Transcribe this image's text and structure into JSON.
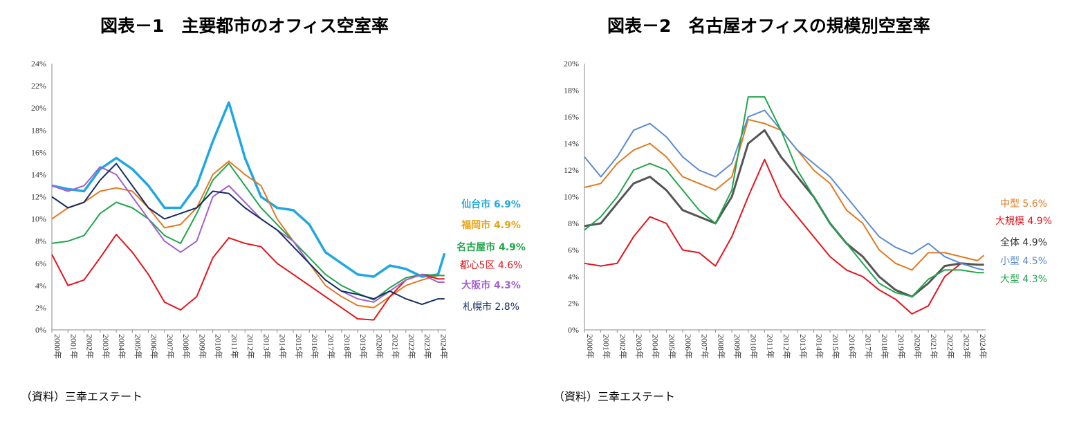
{
  "chart_data": [
    {
      "type": "line",
      "title": "図表－1　主要都市のオフィス空室率",
      "source": "（資料）三幸エステート",
      "ylim": [
        0,
        24
      ],
      "ytick_step": 2,
      "xlim": [
        2000,
        2024.5
      ],
      "x_ticks": [
        "2000年",
        "2001年",
        "2002年",
        "2003年",
        "2004年",
        "2005年",
        "2006年",
        "2007年",
        "2008年",
        "2009年",
        "2010年",
        "2011年",
        "2012年",
        "2013年",
        "2014年",
        "2015年",
        "2016年",
        "2017年",
        "2018年",
        "2019年",
        "2020年",
        "2021年",
        "2022年",
        "2023年",
        "2024年"
      ],
      "x": [
        2000,
        2001,
        2002,
        2003,
        2004,
        2005,
        2006,
        2007,
        2008,
        2009,
        2010,
        2011,
        2012,
        2013,
        2014,
        2015,
        2016,
        2017,
        2018,
        2019,
        2020,
        2021,
        2022,
        2023,
        2024,
        2024.4
      ],
      "series": [
        {
          "name": "仙台市",
          "label": "仙台市 6.9%",
          "color": "#1fa7e1",
          "width": 3.5,
          "values": [
            13,
            12.7,
            12.5,
            14.5,
            15.5,
            14.5,
            13,
            11,
            11,
            13,
            17,
            20.5,
            15.5,
            12,
            11,
            10.8,
            9.5,
            7,
            6,
            5,
            4.8,
            5.8,
            5.5,
            4.8,
            5,
            6.9
          ]
        },
        {
          "name": "福岡市",
          "label": "福岡市 4.9%",
          "color": "#e07a22",
          "labelColor": "#e8a317",
          "width": 2,
          "values": [
            10,
            11,
            11.5,
            12.5,
            12.8,
            12.5,
            11,
            9.2,
            9.5,
            11,
            14,
            15.2,
            14,
            13,
            10,
            8,
            6,
            4,
            3,
            2.2,
            2,
            3,
            4,
            4.5,
            4.9,
            4.9
          ]
        },
        {
          "name": "名古屋市",
          "label": "名古屋市 4.9%",
          "color": "#1fa64a",
          "width": 2,
          "values": [
            7.8,
            8,
            8.5,
            10.5,
            11.5,
            11,
            10,
            8.5,
            7.8,
            10.5,
            13.5,
            15,
            13,
            11,
            9.5,
            8,
            6.5,
            5,
            4,
            3.3,
            2.7,
            3.8,
            4.7,
            5,
            4.9,
            4.9
          ]
        },
        {
          "name": "都心5区",
          "label": "都心5区 4.6%",
          "color": "#e4141b",
          "width": 2,
          "values": [
            6.8,
            4,
            4.5,
            6.5,
            8.6,
            7,
            5,
            2.5,
            1.8,
            3,
            6.5,
            8.3,
            7.8,
            7.5,
            6,
            5,
            4,
            3,
            2,
            1,
            0.9,
            3,
            4.5,
            5,
            4.6,
            4.6
          ]
        },
        {
          "name": "大阪市",
          "label": "大阪市 4.3%",
          "color": "#a35fcf",
          "width": 2,
          "values": [
            13,
            12.5,
            13,
            14.7,
            14,
            12,
            10,
            8,
            7,
            8,
            12,
            13,
            11.5,
            10,
            9,
            8,
            6,
            4.5,
            3.5,
            2.8,
            2.5,
            3.5,
            4.5,
            5,
            4.3,
            4.3
          ]
        },
        {
          "name": "札幌市",
          "label": "札幌市 2.8%",
          "color": "#152d63",
          "width": 2,
          "values": [
            12,
            11,
            11.5,
            13.5,
            15,
            13,
            11,
            10,
            10.5,
            11,
            12.5,
            12.3,
            11,
            10,
            9,
            7.5,
            6,
            4.5,
            3.5,
            3.2,
            2.8,
            3.5,
            2.8,
            2.3,
            2.8,
            2.8
          ]
        }
      ]
    },
    {
      "type": "line",
      "title": "図表－2　名古屋オフィスの規模別空室率",
      "source": "（資料）三幸エステート",
      "ylim": [
        0,
        20
      ],
      "ytick_step": 2,
      "xlim": [
        2000,
        2024.5
      ],
      "x_ticks": [
        "2000年",
        "2001年",
        "2002年",
        "2003年",
        "2004年",
        "2005年",
        "2006年",
        "2007年",
        "2008年",
        "2009年",
        "2010年",
        "2011年",
        "2012年",
        "2013年",
        "2014年",
        "2015年",
        "2016年",
        "2017年",
        "2018年",
        "2019年",
        "2020年",
        "2021年",
        "2022年",
        "2023年",
        "2024年"
      ],
      "x": [
        2000,
        2001,
        2002,
        2003,
        2004,
        2005,
        2006,
        2007,
        2008,
        2009,
        2010,
        2011,
        2012,
        2013,
        2014,
        2015,
        2016,
        2017,
        2018,
        2019,
        2020,
        2021,
        2022,
        2023,
        2024,
        2024.4
      ],
      "series": [
        {
          "name": "中型",
          "label": "中型 5.6%",
          "color": "#e07a22",
          "width": 2,
          "values": [
            10.7,
            11,
            12.5,
            13.5,
            14,
            13,
            11.5,
            11,
            10.5,
            11.5,
            15.8,
            15.5,
            15,
            13.5,
            12,
            11,
            9,
            8,
            6,
            5,
            4.5,
            5.8,
            5.8,
            5.5,
            5.2,
            5.6
          ]
        },
        {
          "name": "大規模",
          "label": "大規模 4.9%",
          "color": "#e4141b",
          "width": 2,
          "values": [
            5,
            4.8,
            5,
            7,
            8.5,
            8,
            6,
            5.8,
            4.8,
            7,
            10,
            12.8,
            10,
            8.5,
            7,
            5.5,
            4.5,
            4,
            3,
            2.3,
            1.2,
            1.8,
            4,
            5,
            4.9,
            4.9
          ]
        },
        {
          "name": "全体",
          "label": "全体 4.9%",
          "color": "#555555",
          "labelColor": "#333333",
          "width": 3,
          "values": [
            7.8,
            8,
            9.5,
            11,
            11.5,
            10.5,
            9,
            8.5,
            8,
            10,
            14,
            15,
            13,
            11.5,
            10,
            8,
            6.5,
            5.5,
            4,
            3,
            2.5,
            3.5,
            4.8,
            5,
            4.9,
            4.9
          ]
        },
        {
          "name": "小型",
          "label": "小型 4.5%",
          "color": "#5b8bd0",
          "width": 2,
          "values": [
            13,
            11.5,
            13,
            15,
            15.5,
            14.5,
            13,
            12,
            11.5,
            12.5,
            16,
            16.5,
            15,
            13.5,
            12.5,
            11.5,
            10,
            8.5,
            7,
            6.2,
            5.7,
            6.5,
            5.5,
            5,
            4.6,
            4.5
          ]
        },
        {
          "name": "大型",
          "label": "大型 4.3%",
          "color": "#1fa64a",
          "width": 2,
          "values": [
            7.5,
            8.5,
            10,
            12,
            12.5,
            12,
            10.5,
            9,
            8,
            10.5,
            17.5,
            17.5,
            15,
            12,
            10,
            8,
            6.5,
            5,
            3.5,
            2.8,
            2.5,
            3.8,
            4.5,
            4.5,
            4.3,
            4.3
          ]
        }
      ]
    }
  ]
}
